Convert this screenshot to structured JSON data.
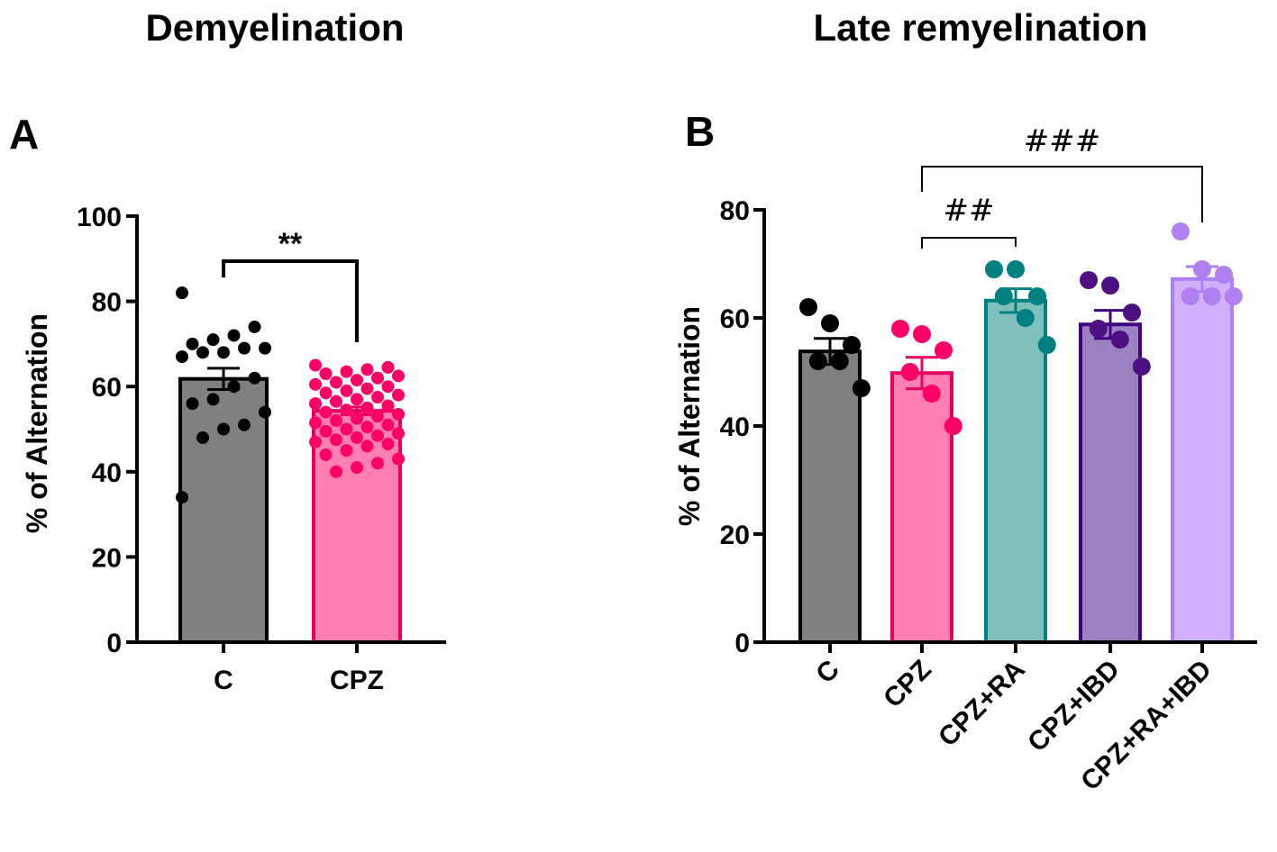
{
  "chart_data": [
    {
      "panel": "A",
      "type": "bar",
      "title": "Demyelination",
      "xlabel": "",
      "ylabel": "% of Alternation",
      "ylim": [
        0,
        100
      ],
      "yticks": [
        0,
        20,
        40,
        60,
        80,
        100
      ],
      "grid": false,
      "categories": [
        "C",
        "CPZ"
      ],
      "values": [
        61.8,
        54.3
      ],
      "sem": [
        2.5,
        0.9
      ],
      "colors": {
        "fill": [
          "#808080",
          "#ff80b0"
        ],
        "stroke": [
          "#000000",
          "#e8005e"
        ],
        "dots": [
          "#000000",
          "#ff0066"
        ]
      },
      "points": [
        [
          82,
          74,
          72,
          71,
          70,
          69,
          69,
          68,
          68,
          67,
          62,
          60,
          57,
          56,
          54,
          51,
          50,
          48,
          34
        ],
        [
          65,
          64.5,
          64,
          63.5,
          63,
          62.5,
          62,
          61.5,
          61,
          60.5,
          60,
          59.5,
          59,
          58.5,
          58,
          57.5,
          57,
          56.5,
          56,
          55.5,
          55,
          54.5,
          54,
          53.5,
          53,
          52.5,
          52,
          51.5,
          51,
          50.5,
          50,
          49.5,
          49,
          48.5,
          48,
          47.5,
          47,
          46.5,
          46,
          45,
          44,
          43,
          42,
          41,
          40
        ]
      ],
      "comparisons": [
        {
          "from": 0,
          "to": 1,
          "label": "**",
          "style": "stars"
        }
      ]
    },
    {
      "panel": "B",
      "type": "bar",
      "title": "Late remyelination",
      "xlabel": "",
      "ylabel": "% of Alternation",
      "ylim": [
        0,
        80
      ],
      "yticks": [
        0,
        20,
        40,
        60,
        80
      ],
      "grid": false,
      "categories": [
        "C",
        "CPZ",
        "CPZ+RA",
        "CPZ+IBD",
        "CPZ+RA+IBD"
      ],
      "values": [
        53.8,
        49.8,
        63.2,
        58.8,
        67.2
      ],
      "sem": [
        2.4,
        2.9,
        2.2,
        2.6,
        2.3
      ],
      "colors": {
        "fill": [
          "#808080",
          "#ff80b0",
          "#80c0bc",
          "#9c80c0",
          "#d0b0ff"
        ],
        "stroke": [
          "#000000",
          "#e8005e",
          "#008080",
          "#400080",
          "#a880ff"
        ],
        "dots": [
          "#000000",
          "#ff0066",
          "#008080",
          "#4c1080",
          "#b080f0"
        ]
      },
      "points": [
        [
          62,
          59,
          55,
          52,
          52,
          47
        ],
        [
          58,
          57,
          54,
          50,
          46,
          40
        ],
        [
          69,
          69,
          64,
          64,
          60,
          55
        ],
        [
          67,
          66,
          61,
          58,
          56,
          51
        ],
        [
          76,
          69,
          68,
          64,
          64,
          64
        ]
      ],
      "comparisons": [
        {
          "from": 1,
          "to": 2,
          "label": "##",
          "style": "hash"
        },
        {
          "from": 1,
          "to": 4,
          "label": "###",
          "style": "hash"
        }
      ]
    }
  ]
}
